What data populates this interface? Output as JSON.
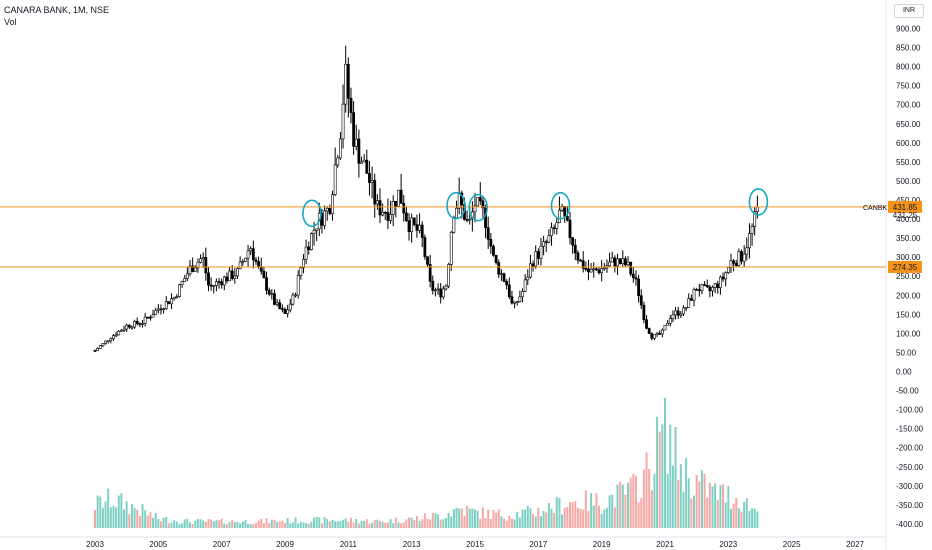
{
  "header": {
    "title": "CANARA BANK, 1M, NSE",
    "volume_label": "Vol",
    "currency": "INR"
  },
  "chart_data": {
    "type": "candlestick",
    "x_ticks": [
      "2003",
      "2005",
      "2007",
      "2009",
      "2011",
      "2013",
      "2015",
      "2017",
      "2019",
      "2021",
      "2023",
      "2025",
      "2027"
    ],
    "y_ticks": [
      "900.00",
      "850.00",
      "800.00",
      "750.00",
      "700.00",
      "650.00",
      "600.00",
      "550.00",
      "500.00",
      "450.00",
      "400.00",
      "350.00",
      "300.00",
      "250.00",
      "200.00",
      "150.00",
      "100.00",
      "50.00",
      "0.00",
      "-50.00",
      "-100.00",
      "-150.00",
      "-200.00",
      "-250.00",
      "-300.00",
      "-350.00",
      "-400.00"
    ],
    "ylim": [
      -420,
      930
    ],
    "symbol": "CANBK",
    "last_price": "431.25",
    "levels": [
      {
        "label": "431.85",
        "value": 431.85,
        "color": "#f7931a"
      },
      {
        "label": "274.35",
        "value": 274.35,
        "color": "#f7931a"
      }
    ],
    "highlight_circles": [
      {
        "date": 2009.85,
        "price": 415
      },
      {
        "date": 2014.4,
        "price": 435
      },
      {
        "date": 2015.1,
        "price": 430
      },
      {
        "date": 2017.7,
        "price": 435
      },
      {
        "date": 2023.95,
        "price": 445
      }
    ],
    "price_path": [
      [
        2003.0,
        55
      ],
      [
        2003.5,
        90
      ],
      [
        2004.0,
        120
      ],
      [
        2004.5,
        130
      ],
      [
        2005.0,
        165
      ],
      [
        2005.5,
        195
      ],
      [
        2006.0,
        270
      ],
      [
        2006.4,
        300
      ],
      [
        2006.6,
        220
      ],
      [
        2007.0,
        240
      ],
      [
        2007.5,
        260
      ],
      [
        2007.9,
        330
      ],
      [
        2008.2,
        260
      ],
      [
        2008.7,
        175
      ],
      [
        2009.0,
        150
      ],
      [
        2009.3,
        200
      ],
      [
        2009.6,
        310
      ],
      [
        2010.0,
        390
      ],
      [
        2010.4,
        430
      ],
      [
        2010.75,
        640
      ],
      [
        2010.9,
        780
      ],
      [
        2011.2,
        600
      ],
      [
        2011.6,
        520
      ],
      [
        2011.9,
        430
      ],
      [
        2012.3,
        420
      ],
      [
        2012.6,
        470
      ],
      [
        2012.9,
        390
      ],
      [
        2013.3,
        360
      ],
      [
        2013.6,
        220
      ],
      [
        2013.9,
        205
      ],
      [
        2014.1,
        230
      ],
      [
        2014.3,
        420
      ],
      [
        2014.5,
        450
      ],
      [
        2014.8,
        380
      ],
      [
        2015.0,
        440
      ],
      [
        2015.3,
        410
      ],
      [
        2015.6,
        290
      ],
      [
        2016.0,
        230
      ],
      [
        2016.2,
        165
      ],
      [
        2016.5,
        210
      ],
      [
        2016.8,
        290
      ],
      [
        2017.2,
        330
      ],
      [
        2017.5,
        370
      ],
      [
        2017.7,
        420
      ],
      [
        2018.0,
        360
      ],
      [
        2018.3,
        290
      ],
      [
        2018.6,
        260
      ],
      [
        2019.0,
        270
      ],
      [
        2019.4,
        290
      ],
      [
        2019.8,
        280
      ],
      [
        2020.1,
        230
      ],
      [
        2020.4,
        120
      ],
      [
        2020.6,
        90
      ],
      [
        2020.9,
        100
      ],
      [
        2021.2,
        150
      ],
      [
        2021.6,
        160
      ],
      [
        2022.0,
        220
      ],
      [
        2022.4,
        210
      ],
      [
        2022.8,
        240
      ],
      [
        2023.1,
        290
      ],
      [
        2023.4,
        300
      ],
      [
        2023.7,
        360
      ],
      [
        2023.95,
        431
      ]
    ],
    "volume_path": [
      [
        2003.0,
        0.18
      ],
      [
        2003.5,
        0.22
      ],
      [
        2004.0,
        0.18
      ],
      [
        2004.5,
        0.13
      ],
      [
        2005.0,
        0.07
      ],
      [
        2006.0,
        0.05
      ],
      [
        2008.0,
        0.05
      ],
      [
        2010.0,
        0.06
      ],
      [
        2011.0,
        0.06
      ],
      [
        2012.0,
        0.05
      ],
      [
        2013.0,
        0.07
      ],
      [
        2014.0,
        0.1
      ],
      [
        2014.5,
        0.15
      ],
      [
        2015.0,
        0.12
      ],
      [
        2016.0,
        0.1
      ],
      [
        2017.0,
        0.13
      ],
      [
        2018.0,
        0.2
      ],
      [
        2019.0,
        0.2
      ],
      [
        2020.0,
        0.3
      ],
      [
        2020.5,
        0.45
      ],
      [
        2021.0,
        0.8
      ],
      [
        2021.4,
        0.5
      ],
      [
        2021.8,
        0.38
      ],
      [
        2022.5,
        0.28
      ],
      [
        2023.0,
        0.25
      ],
      [
        2023.5,
        0.2
      ],
      [
        2023.95,
        0.12
      ]
    ]
  }
}
